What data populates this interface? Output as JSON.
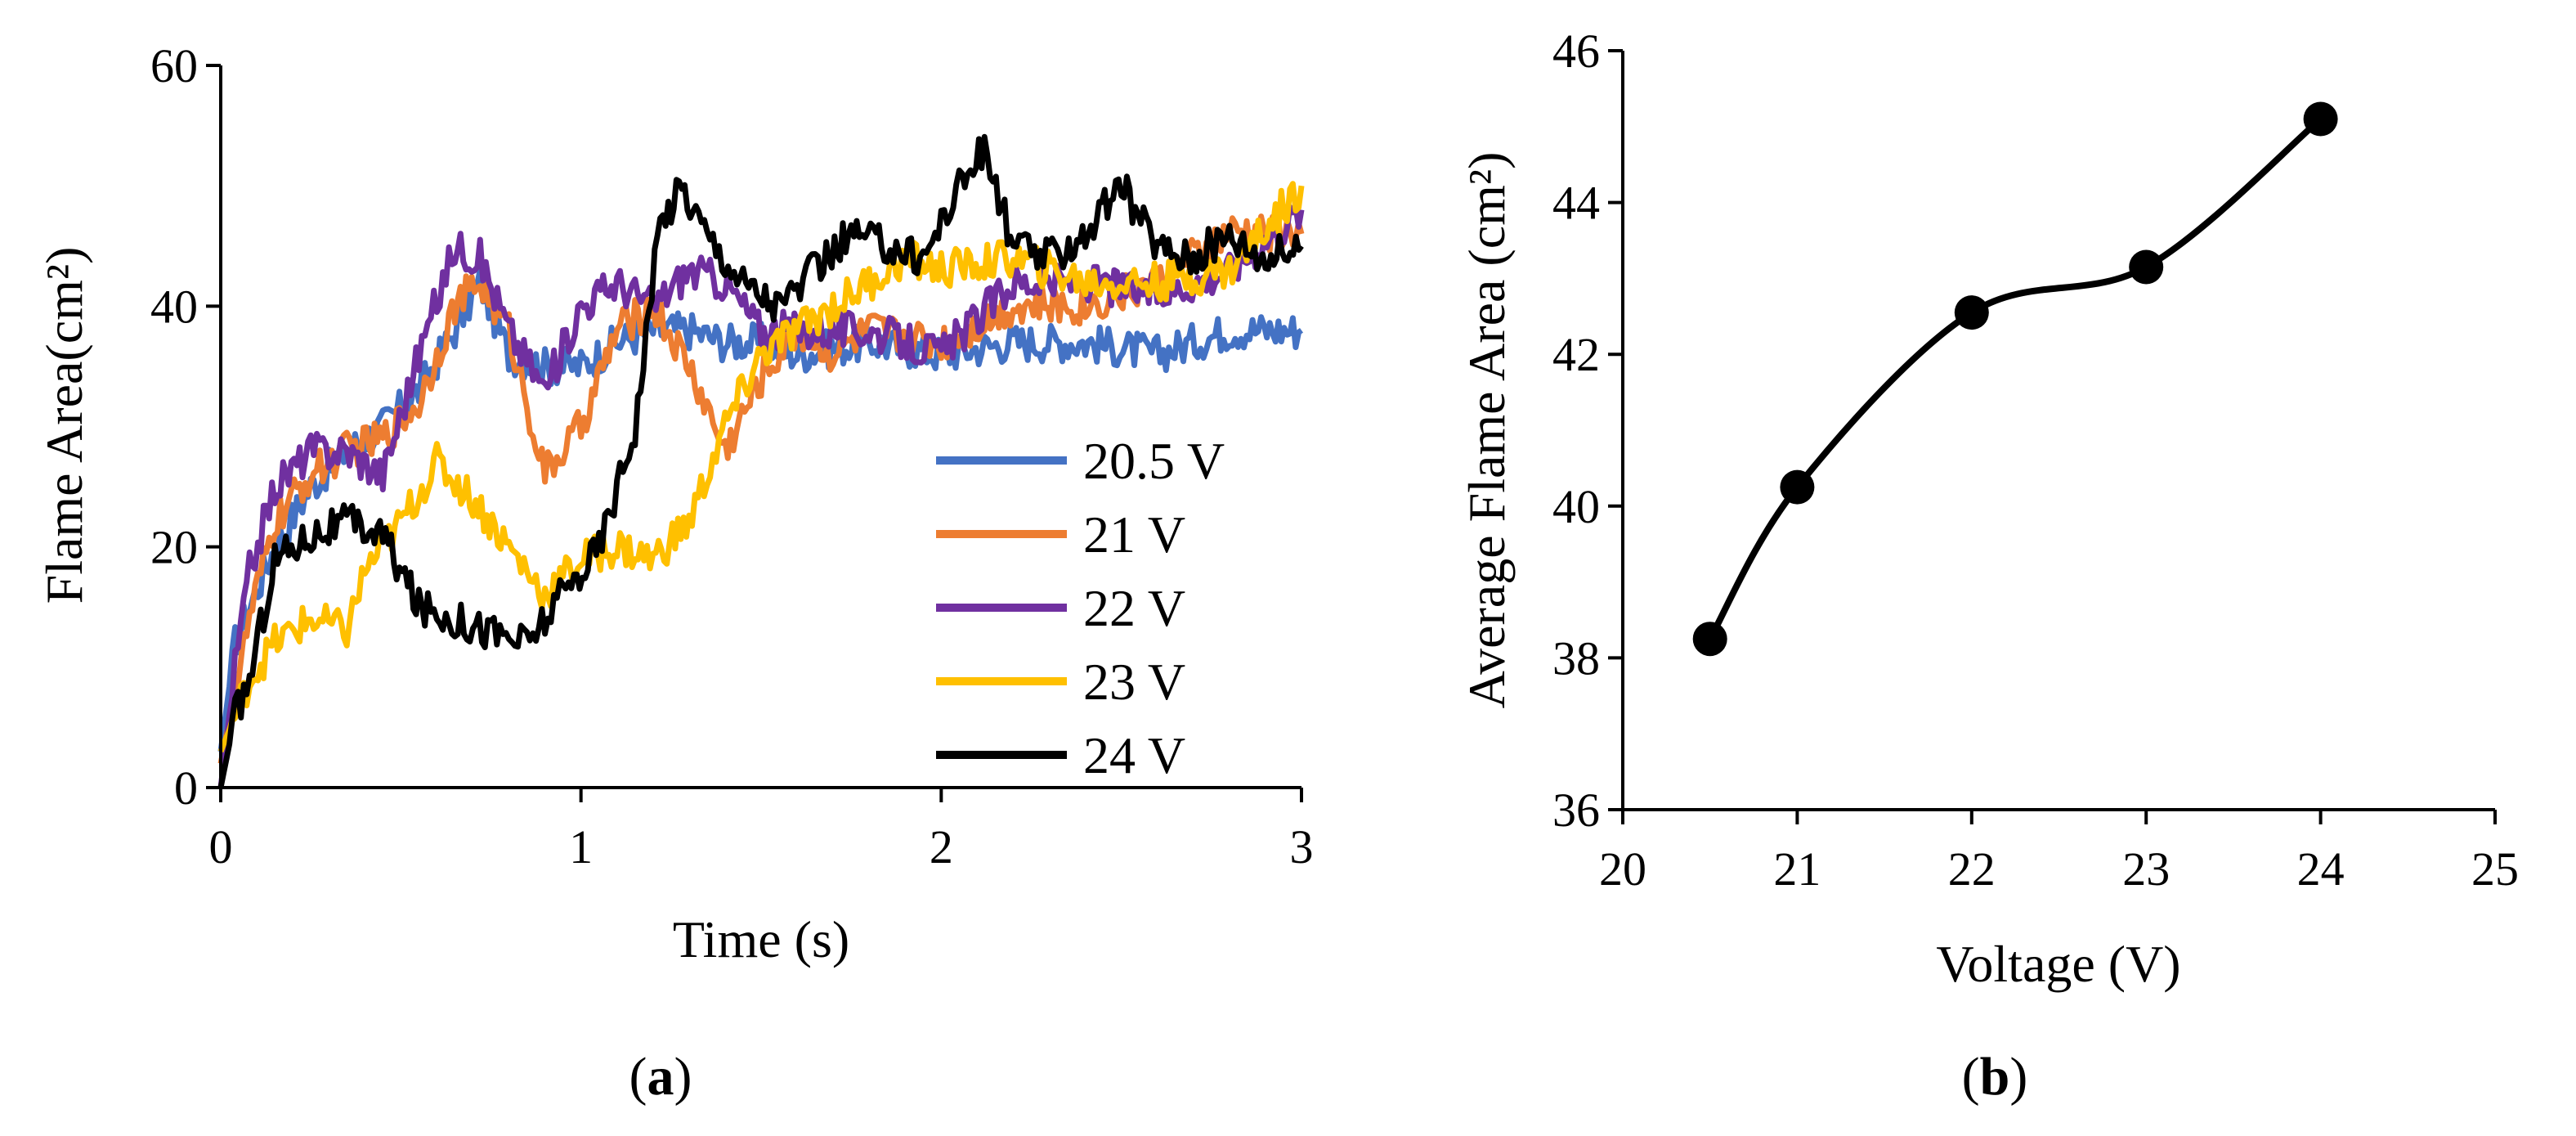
{
  "chart_data": [
    {
      "type": "line",
      "panel": "a",
      "caption": {
        "open": "(",
        "letter": "a",
        "close": ")"
      },
      "xlabel": "Time (s)",
      "ylabel": "Flame Area(cm²)",
      "xlim": [
        0,
        3
      ],
      "ylim": [
        0,
        60
      ],
      "xticks": [
        0,
        1,
        2,
        3
      ],
      "yticks": [
        0,
        20,
        40,
        60
      ],
      "legend_position": "bottom-right",
      "series": [
        {
          "name": "20.5 V",
          "color": "#4472C4",
          "x": [
            0,
            0.04,
            0.08,
            0.15,
            0.25,
            0.35,
            0.45,
            0.55,
            0.65,
            0.72,
            0.8,
            0.9,
            1.0,
            1.1,
            1.2,
            1.3,
            1.4,
            1.5,
            1.6,
            1.8,
            2.0,
            2.2,
            2.4,
            2.6,
            2.8,
            3.0
          ],
          "y": [
            3,
            12,
            15,
            20,
            25,
            28,
            30,
            33,
            38,
            42,
            36,
            35,
            35,
            37,
            38,
            38,
            37,
            37,
            36,
            37,
            36,
            37,
            37,
            36,
            38,
            38
          ]
        },
        {
          "name": "21 V",
          "color": "#ED7D31",
          "x": [
            0,
            0.04,
            0.08,
            0.15,
            0.25,
            0.35,
            0.45,
            0.55,
            0.65,
            0.72,
            0.8,
            0.9,
            1.0,
            1.1,
            1.2,
            1.3,
            1.4,
            1.5,
            1.6,
            1.7,
            1.8,
            2.0,
            2.2,
            2.4,
            2.6,
            2.8,
            3.0
          ],
          "y": [
            2,
            8,
            14,
            22,
            26,
            28,
            29,
            32,
            40,
            42,
            38,
            26,
            30,
            38,
            40,
            35,
            28,
            34,
            38,
            36,
            38,
            37,
            40,
            40,
            42,
            46,
            46
          ]
        },
        {
          "name": "22 V",
          "color": "#7030A0",
          "x": [
            0,
            0.04,
            0.08,
            0.15,
            0.25,
            0.35,
            0.45,
            0.55,
            0.65,
            0.72,
            0.8,
            0.9,
            1.0,
            1.1,
            1.2,
            1.3,
            1.4,
            1.5,
            1.6,
            1.8,
            2.0,
            2.2,
            2.4,
            2.6,
            2.8,
            3.0
          ],
          "y": [
            0,
            10,
            18,
            25,
            28,
            28,
            26,
            36,
            45,
            44,
            38,
            33,
            40,
            42,
            40,
            43,
            42,
            38,
            38,
            38,
            36,
            42,
            42,
            41,
            43,
            48
          ]
        },
        {
          "name": "23 V",
          "color": "#FFC000",
          "x": [
            0,
            0.04,
            0.08,
            0.15,
            0.25,
            0.35,
            0.4,
            0.5,
            0.6,
            0.7,
            0.8,
            0.9,
            1.0,
            1.1,
            1.2,
            1.3,
            1.4,
            1.5,
            1.6,
            1.7,
            1.8,
            1.9,
            2.0,
            2.2,
            2.4,
            2.6,
            2.8,
            3.0
          ],
          "y": [
            3,
            6,
            9,
            12,
            14,
            13,
            18,
            22,
            27,
            24,
            20,
            16,
            19,
            20,
            19,
            22,
            30,
            36,
            38,
            40,
            42,
            44,
            43,
            44,
            42,
            42,
            43,
            50
          ]
        },
        {
          "name": "24 V",
          "color": "#000000",
          "x": [
            0,
            0.04,
            0.08,
            0.15,
            0.25,
            0.35,
            0.45,
            0.55,
            0.65,
            0.75,
            0.85,
            0.95,
            1.05,
            1.15,
            1.22,
            1.28,
            1.35,
            1.45,
            1.55,
            1.65,
            1.75,
            1.85,
            1.95,
            2.05,
            2.12,
            2.2,
            2.3,
            2.4,
            2.5,
            2.6,
            2.7,
            2.8,
            2.9,
            3.0
          ],
          "y": [
            0,
            6,
            9,
            19,
            21,
            22,
            21,
            15,
            14,
            13,
            12,
            16,
            20,
            30,
            47,
            50,
            46,
            42,
            40,
            43,
            46,
            45,
            44,
            50,
            53,
            45,
            44,
            46,
            50,
            45,
            44,
            46,
            44,
            45
          ]
        }
      ]
    },
    {
      "type": "line",
      "panel": "b",
      "caption": {
        "open": "(",
        "letter": "b",
        "close": ")"
      },
      "xlabel": "Voltage (V)",
      "ylabel": "Average Flame Area (cm²)",
      "xlim": [
        20,
        25
      ],
      "ylim": [
        36,
        46
      ],
      "xticks": [
        20,
        21,
        22,
        23,
        24,
        25
      ],
      "yticks": [
        36,
        38,
        40,
        42,
        44,
        46
      ],
      "smooth": true,
      "markers": true,
      "series": [
        {
          "name": "Average Flame Area",
          "color": "#000000",
          "x": [
            20.5,
            21,
            22,
            23,
            24
          ],
          "y": [
            38.25,
            40.25,
            42.55,
            43.15,
            45.1
          ]
        }
      ]
    }
  ]
}
